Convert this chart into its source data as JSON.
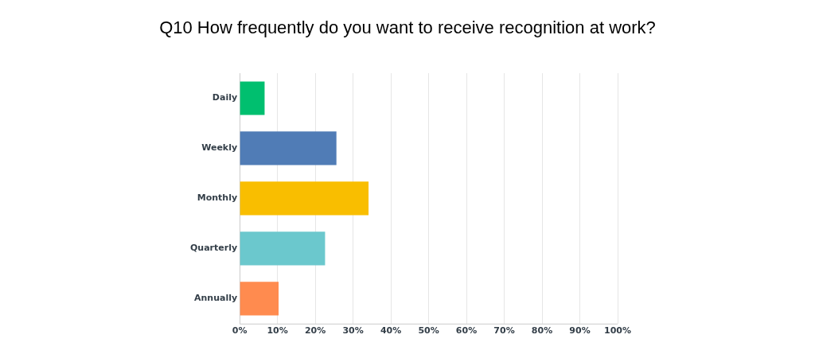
{
  "chart_data": {
    "type": "bar",
    "orientation": "horizontal",
    "title": "Q10 How frequently do you want to receive recognition at work?",
    "categories": [
      "Daily",
      "Weekly",
      "Monthly",
      "Quarterly",
      "Annually"
    ],
    "values": [
      6.6,
      25.6,
      34.1,
      22.6,
      10.3
    ],
    "colors": [
      "#00bf6f",
      "#507cb6",
      "#f9be00",
      "#6bc8cd",
      "#ff8b4f"
    ],
    "xlim": [
      0,
      100
    ],
    "xticks": [
      {
        "value": 0,
        "label": "0%"
      },
      {
        "value": 10,
        "label": "10%"
      },
      {
        "value": 20,
        "label": "20%"
      },
      {
        "value": 30,
        "label": "30%"
      },
      {
        "value": 40,
        "label": "40%"
      },
      {
        "value": 50,
        "label": "50%"
      },
      {
        "value": 60,
        "label": "60%"
      },
      {
        "value": 70,
        "label": "70%"
      },
      {
        "value": 80,
        "label": "80%"
      },
      {
        "value": 90,
        "label": "90%"
      },
      {
        "value": 100,
        "label": "100%"
      }
    ],
    "grid": "x",
    "legend": false
  }
}
